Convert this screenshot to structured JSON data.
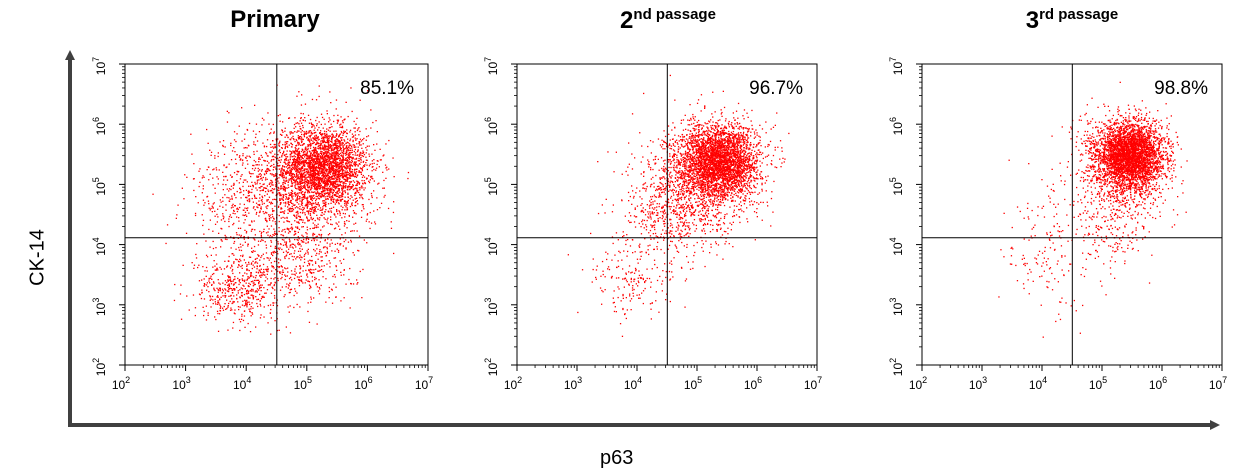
{
  "figure": {
    "xlabel": "p63",
    "ylabel": "CK-14",
    "dot_color": "#ff0000"
  },
  "chart_data": [
    {
      "type": "scatter",
      "title": "Primary",
      "title_base": "2",
      "x_scale": "log",
      "y_scale": "log",
      "xlim": [
        100,
        10000000
      ],
      "ylim": [
        100,
        10000000
      ],
      "x_tick_labels": [
        "10^2",
        "10^3",
        "10^4",
        "10^5",
        "10^6",
        "10^7"
      ],
      "y_tick_labels": [
        "10^2",
        "10^3",
        "10^4",
        "10^5",
        "10^6",
        "10^7"
      ],
      "gate": {
        "x": 32000,
        "y": 13000
      },
      "annotations": [
        {
          "quadrant": "upper-right",
          "text": "85.1%"
        }
      ],
      "series": [
        {
          "clusters": [
            {
              "x": 200000,
              "y": 200000,
              "sx": 0.35,
              "sy": 0.32,
              "n": 2200
            },
            {
              "x": 100000,
              "y": 100000,
              "sx": 0.55,
              "sy": 0.55,
              "n": 1500
            },
            {
              "x": 10000,
              "y": 50000,
              "sx": 0.5,
              "sy": 0.55,
              "n": 450
            },
            {
              "x": 7000,
              "y": 1800,
              "sx": 0.35,
              "sy": 0.25,
              "n": 420
            },
            {
              "x": 60000,
              "y": 4500,
              "sx": 0.5,
              "sy": 0.4,
              "n": 450
            }
          ]
        }
      ]
    },
    {
      "type": "scatter",
      "title": "nd passage",
      "title_base": "2",
      "x_scale": "log",
      "y_scale": "log",
      "xlim": [
        100,
        10000000
      ],
      "ylim": [
        100,
        10000000
      ],
      "x_tick_labels": [
        "10^2",
        "10^3",
        "10^4",
        "10^5",
        "10^6",
        "10^7"
      ],
      "y_tick_labels": [
        "10^2",
        "10^3",
        "10^4",
        "10^5",
        "10^6",
        "10^7"
      ],
      "gate": {
        "x": 32000,
        "y": 13000
      },
      "annotations": [
        {
          "quadrant": "upper-right",
          "text": "96.7%"
        }
      ],
      "series": [
        {
          "clusters": [
            {
              "x": 250000,
              "y": 250000,
              "sx": 0.32,
              "sy": 0.3,
              "n": 2800
            },
            {
              "x": 120000,
              "y": 120000,
              "sx": 0.45,
              "sy": 0.45,
              "n": 1200
            },
            {
              "x": 30000,
              "y": 30000,
              "sx": 0.4,
              "sy": 0.45,
              "n": 400
            },
            {
              "x": 8000,
              "y": 2500,
              "sx": 0.35,
              "sy": 0.3,
              "n": 160
            }
          ]
        }
      ]
    },
    {
      "type": "scatter",
      "title": "rd passage",
      "title_base": "3",
      "x_scale": "log",
      "y_scale": "log",
      "xlim": [
        100,
        10000000
      ],
      "ylim": [
        100,
        10000000
      ],
      "x_tick_labels": [
        "10^2",
        "10^3",
        "10^4",
        "10^5",
        "10^6",
        "10^7"
      ],
      "y_tick_labels": [
        "10^2",
        "10^3",
        "10^4",
        "10^5",
        "10^6",
        "10^7"
      ],
      "gate": {
        "x": 32000,
        "y": 13000
      },
      "annotations": [
        {
          "quadrant": "upper-right",
          "text": "98.8%"
        }
      ],
      "series": [
        {
          "clusters": [
            {
              "x": 300000,
              "y": 300000,
              "sx": 0.28,
              "sy": 0.28,
              "n": 3400
            },
            {
              "x": 200000,
              "y": 150000,
              "sx": 0.4,
              "sy": 0.45,
              "n": 700
            },
            {
              "x": 15000,
              "y": 10000,
              "sx": 0.45,
              "sy": 0.55,
              "n": 170
            },
            {
              "x": 150000,
              "y": 15000,
              "sx": 0.25,
              "sy": 0.3,
              "n": 120
            }
          ]
        }
      ]
    }
  ]
}
